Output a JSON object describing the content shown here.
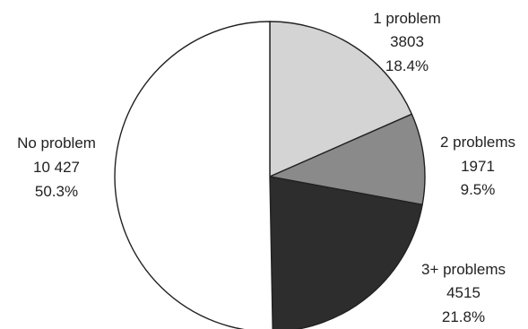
{
  "chart_data": {
    "type": "pie",
    "title": "",
    "slices": [
      {
        "label": "1 problem",
        "count": "3803",
        "percent": "18.4%",
        "value": 18.4,
        "color": "#d4d4d4"
      },
      {
        "label": "2 problems",
        "count": "1971",
        "percent": "9.5%",
        "value": 9.5,
        "color": "#8a8a8a"
      },
      {
        "label": "3+ problems",
        "count": "4515",
        "percent": "21.8%",
        "value": 21.8,
        "color": "#2d2d2d"
      },
      {
        "label": "No problem",
        "count": "10 427",
        "percent": "50.3%",
        "value": 50.3,
        "color": "#ffffff"
      }
    ],
    "start_angle_deg": 0,
    "direction": "clockwise",
    "edge_color": "#222222"
  }
}
